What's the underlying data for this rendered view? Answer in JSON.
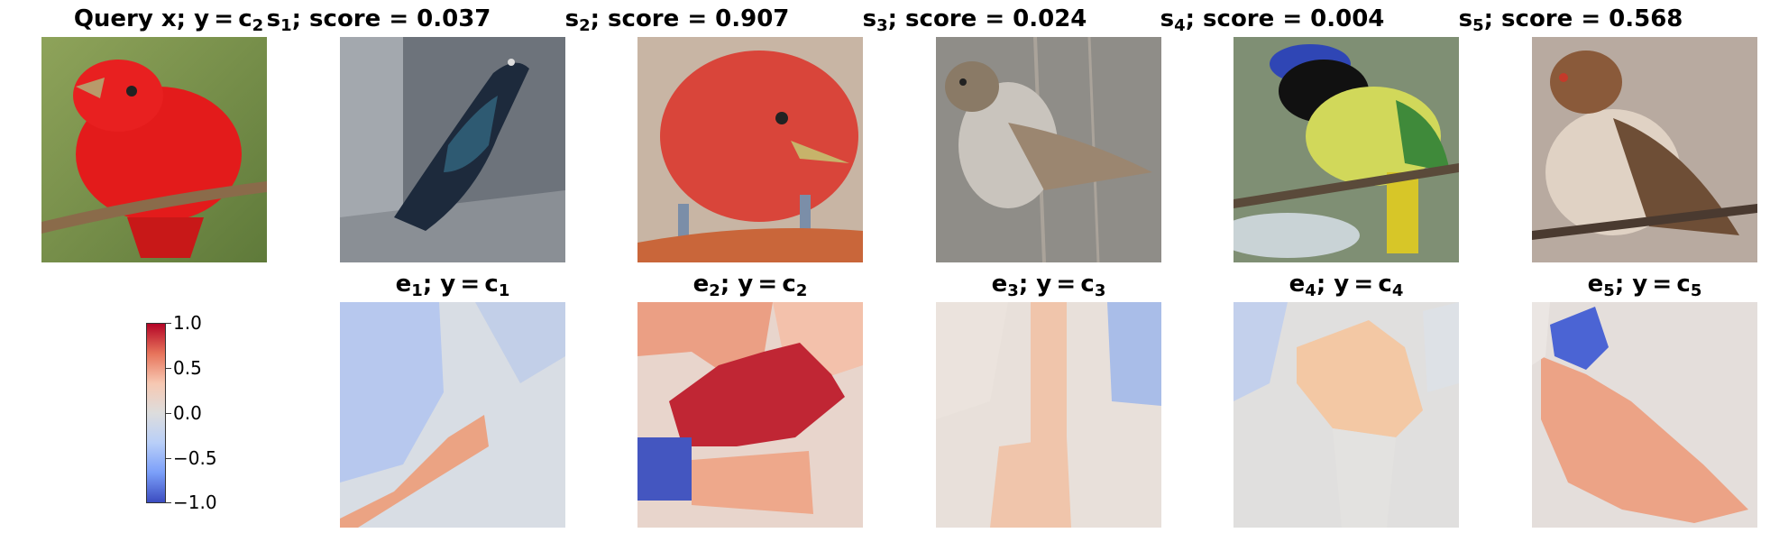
{
  "query": {
    "title": {
      "main": "Query x; y = c",
      "sub": "2",
      "suffix": ""
    },
    "image_icon": "red-bird-photo"
  },
  "samples": [
    {
      "label": "s",
      "sub": "1",
      "suffix": "; score = 0.037",
      "image_icon": "dark-iridescent-bird-photo"
    },
    {
      "label": "s",
      "sub": "2",
      "suffix": "; score = 0.907",
      "image_icon": "red-bird-closeup-photo"
    },
    {
      "label": "s",
      "sub": "3",
      "suffix": "; score = 0.024",
      "image_icon": "sparrow-photo"
    },
    {
      "label": "s",
      "sub": "4",
      "suffix": "; score = 0.004",
      "image_icon": "green-jay-photo"
    },
    {
      "label": "s",
      "sub": "5",
      "suffix": "; score = 0.568",
      "image_icon": "brown-sparrow-photo"
    }
  ],
  "explanations": [
    {
      "label": "e",
      "sub": "1",
      "mid": "; y = c",
      "sub2": "1",
      "image_icon": "heatmap-overlay"
    },
    {
      "label": "e",
      "sub": "2",
      "mid": "; y = c",
      "sub2": "2",
      "image_icon": "heatmap-overlay"
    },
    {
      "label": "e",
      "sub": "3",
      "mid": "; y = c",
      "sub2": "3",
      "image_icon": "heatmap-overlay"
    },
    {
      "label": "e",
      "sub": "4",
      "mid": "; y = c",
      "sub2": "4",
      "image_icon": "heatmap-overlay"
    },
    {
      "label": "e",
      "sub": "5",
      "mid": "; y = c",
      "sub2": "5",
      "image_icon": "heatmap-overlay"
    }
  ],
  "colorbar": {
    "ticks": [
      "1.0",
      "0.5",
      "0.0",
      "−0.5",
      "−1.0"
    ],
    "colors": {
      "max": "#b40426",
      "mid": "#dddddd",
      "min": "#3b4cc0"
    }
  }
}
